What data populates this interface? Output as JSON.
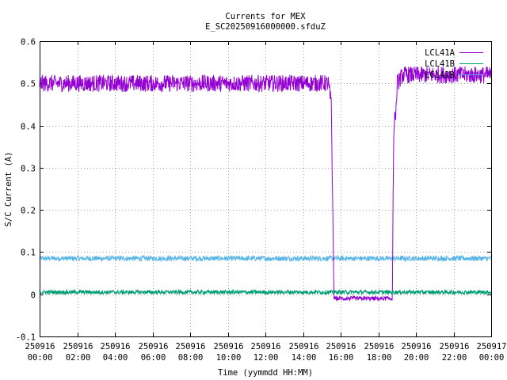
{
  "chart_data": {
    "type": "line",
    "title": "Currents for MEX",
    "subtitle": "E_SC20250916000000.sfduZ",
    "xlabel": "Time (yymmdd HH:MM)",
    "ylabel": "S/C Current (A)",
    "ylim": [
      -0.1,
      0.6
    ],
    "yticks": [
      "-0.1",
      "0",
      "0.1",
      "0.2",
      "0.3",
      "0.4",
      "0.5",
      "0.6"
    ],
    "xlim_hours": [
      0,
      24
    ],
    "xticks": [
      {
        "date": "250916",
        "time": "00:00"
      },
      {
        "date": "250916",
        "time": "02:00"
      },
      {
        "date": "250916",
        "time": "04:00"
      },
      {
        "date": "250916",
        "time": "06:00"
      },
      {
        "date": "250916",
        "time": "08:00"
      },
      {
        "date": "250916",
        "time": "10:00"
      },
      {
        "date": "250916",
        "time": "12:00"
      },
      {
        "date": "250916",
        "time": "14:00"
      },
      {
        "date": "250916",
        "time": "16:00"
      },
      {
        "date": "250916",
        "time": "18:00"
      },
      {
        "date": "250916",
        "time": "20:00"
      },
      {
        "date": "250916",
        "time": "22:00"
      },
      {
        "date": "250917",
        "time": "00:00"
      }
    ],
    "grid": true,
    "legend_position": "top-right",
    "series": [
      {
        "name": "LCL41A",
        "color": "#9400d3",
        "points": [
          [
            0.0,
            0.5
          ],
          [
            15.35,
            0.5
          ],
          [
            15.5,
            0.45
          ],
          [
            15.65,
            -0.01
          ],
          [
            18.75,
            -0.01
          ],
          [
            18.8,
            0.3
          ],
          [
            18.85,
            0.42
          ],
          [
            18.95,
            0.43
          ],
          [
            19.0,
            0.5
          ],
          [
            19.3,
            0.52
          ],
          [
            24.0,
            0.52
          ]
        ],
        "noise": 0.02
      },
      {
        "name": "LCL41B",
        "color": "#009e73",
        "points": [
          [
            0.0,
            0.005
          ],
          [
            24.0,
            0.005
          ]
        ],
        "noise": 0.008
      },
      {
        "name": "LCL42B",
        "color": "#56b4e9",
        "points": [
          [
            0.0,
            0.085
          ],
          [
            24.0,
            0.085
          ]
        ],
        "noise": 0.006
      }
    ]
  }
}
